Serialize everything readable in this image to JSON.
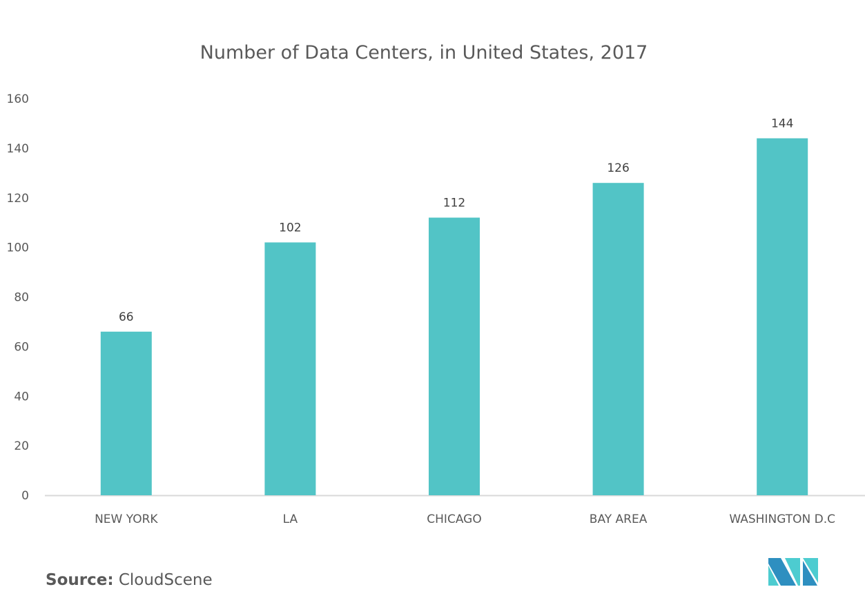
{
  "chart_data": {
    "type": "bar",
    "title": "Number of Data Centers, in United States, 2017",
    "xlabel": "",
    "ylabel": "",
    "categories": [
      "NEW YORK",
      "LA",
      "CHICAGO",
      "BAY AREA",
      "WASHINGTON D.C"
    ],
    "values": [
      66,
      102,
      112,
      126,
      144
    ],
    "data_labels": [
      "66",
      "102",
      "112",
      "126",
      "144"
    ],
    "ylim": [
      0,
      160
    ],
    "yticks": [
      0,
      20,
      40,
      60,
      80,
      100,
      120,
      140,
      160
    ],
    "ytick_labels": [
      "0",
      "20",
      "40",
      "60",
      "80",
      "100",
      "120",
      "140",
      "160"
    ],
    "grid": false,
    "legend": "none",
    "bar_color": "#52C4C6",
    "axis_color": "#D9D9D9"
  },
  "footer": {
    "source_label": "Source:",
    "source_value": "CloudScene"
  },
  "logo": {
    "name": "mordor-intelligence-logo-icon",
    "colors": [
      "#2E8FC0",
      "#4DCCD0"
    ]
  }
}
